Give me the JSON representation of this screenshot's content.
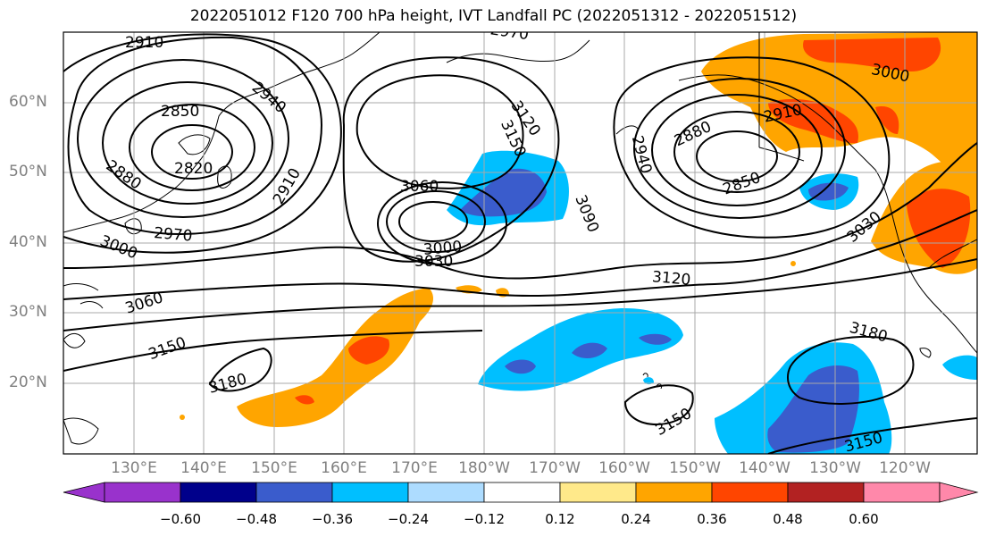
{
  "title": "2022051012 F120 700 hPa height, IVT Landfall PC (2022051312 - 2022051512)",
  "map": {
    "latitude_labels": [
      "60°N",
      "50°N",
      "40°N",
      "30°N",
      "20°N"
    ],
    "longitude_labels": [
      "130°E",
      "140°E",
      "150°E",
      "160°E",
      "170°E",
      "180°W",
      "170°W",
      "160°W",
      "150°W",
      "140°W",
      "130°W",
      "120°W"
    ],
    "contour_labels": [
      {
        "text": "2910"
      },
      {
        "text": "2970"
      },
      {
        "text": "3000"
      },
      {
        "text": "2850"
      },
      {
        "text": "2940"
      },
      {
        "text": "2820"
      },
      {
        "text": "2880"
      },
      {
        "text": "2910"
      },
      {
        "text": "2970"
      },
      {
        "text": "3000"
      },
      {
        "text": "3060"
      },
      {
        "text": "3120"
      },
      {
        "text": "3150"
      },
      {
        "text": "3060"
      },
      {
        "text": "3090"
      },
      {
        "text": "3000"
      },
      {
        "text": "3030"
      },
      {
        "text": "2880"
      },
      {
        "text": "2940"
      },
      {
        "text": "2910"
      },
      {
        "text": "2850"
      },
      {
        "text": "3030"
      },
      {
        "text": "3120"
      },
      {
        "text": "3150"
      },
      {
        "text": "3180"
      },
      {
        "text": "3180"
      },
      {
        "text": "3150"
      },
      {
        "text": "3150"
      }
    ]
  },
  "colorbar": {
    "ticks": [
      "−0.60",
      "−0.48",
      "−0.36",
      "−0.24",
      "−0.12",
      "0.12",
      "0.24",
      "0.36",
      "0.48",
      "0.60"
    ],
    "colors": [
      "#9932CC",
      "#00008B",
      "#3A5CCC",
      "#00BFFF",
      "#ADDCFF",
      "#FFFFFF",
      "#FFE98A",
      "#FFA500",
      "#FF4500",
      "#B22222",
      "#FF88AA"
    ]
  }
}
